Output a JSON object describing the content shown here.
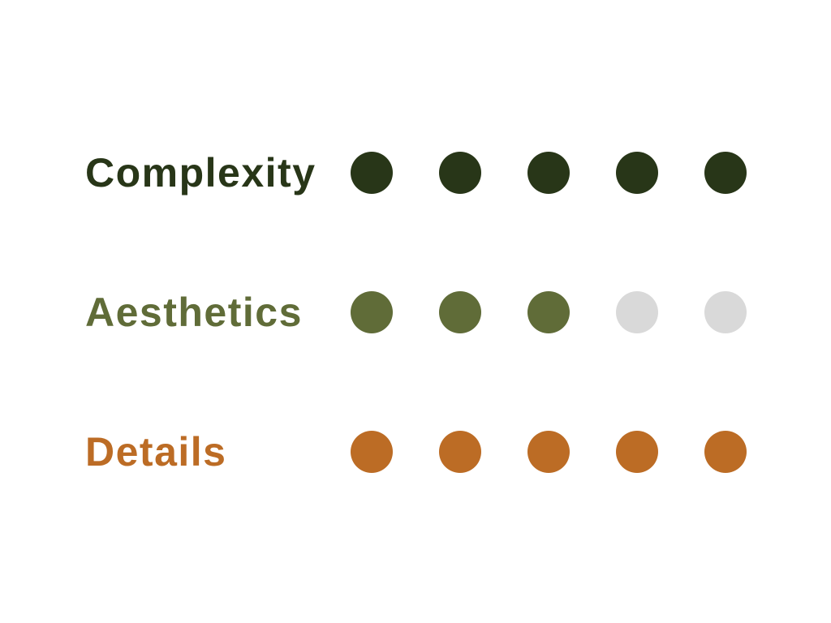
{
  "empty_color": "#d9d9d9",
  "ratings": [
    {
      "label": "Complexity",
      "value": 5,
      "max": 5,
      "color": "#283618"
    },
    {
      "label": "Aesthetics",
      "value": 3,
      "max": 5,
      "color": "#606c38"
    },
    {
      "label": "Details",
      "value": 5,
      "max": 5,
      "color": "#bc6c25"
    }
  ]
}
